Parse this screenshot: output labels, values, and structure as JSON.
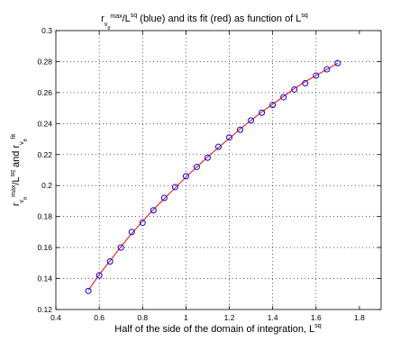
{
  "chart_data": {
    "type": "scatter",
    "title_parts": {
      "r": "r",
      "v": "v",
      "theta": "θ",
      "max": "max",
      "slash": "/L",
      "sq": "sq",
      "rest": " (blue) and its fit (red) as function of L"
    },
    "xlabel_parts": {
      "main": "Half of the side of the domain of integration, L",
      "sq": "sq"
    },
    "ylabel_parts": {
      "r": "r",
      "v": "v",
      "theta": "θ",
      "max": "max",
      "mid": "/L",
      "sq": "sq",
      "and": " and r",
      "fit": "fit"
    },
    "xlim": [
      0.4,
      1.9
    ],
    "ylim": [
      0.12,
      0.3
    ],
    "xticks": [
      0.4,
      0.6,
      0.8,
      1,
      1.2,
      1.4,
      1.6,
      1.8
    ],
    "yticks": [
      0.12,
      0.14,
      0.16,
      0.18,
      0.2,
      0.22,
      0.24,
      0.26,
      0.28,
      0.3
    ],
    "grid": true,
    "series": [
      {
        "style": "markers",
        "color": "#0000ff",
        "x": [
          0.55,
          0.6,
          0.65,
          0.7,
          0.75,
          0.8,
          0.85,
          0.9,
          0.95,
          1.0,
          1.05,
          1.1,
          1.15,
          1.2,
          1.25,
          1.3,
          1.35,
          1.4,
          1.45,
          1.5,
          1.55,
          1.6,
          1.65,
          1.7
        ],
        "y": [
          0.132,
          0.142,
          0.151,
          0.16,
          0.17,
          0.176,
          0.184,
          0.192,
          0.199,
          0.206,
          0.212,
          0.218,
          0.225,
          0.231,
          0.236,
          0.242,
          0.247,
          0.252,
          0.257,
          0.262,
          0.266,
          0.271,
          0.275,
          0.279
        ]
      },
      {
        "style": "line",
        "color": "#ff0000",
        "x": [
          0.55,
          0.6,
          0.65,
          0.7,
          0.75,
          0.8,
          0.85,
          0.9,
          0.95,
          1.0,
          1.05,
          1.1,
          1.15,
          1.2,
          1.25,
          1.3,
          1.35,
          1.4,
          1.45,
          1.5,
          1.55,
          1.6,
          1.65,
          1.7
        ],
        "y": [
          0.1325,
          0.1425,
          0.1515,
          0.1605,
          0.169,
          0.177,
          0.1845,
          0.1915,
          0.1985,
          0.2055,
          0.212,
          0.2185,
          0.2245,
          0.2305,
          0.2365,
          0.242,
          0.2475,
          0.2525,
          0.2575,
          0.2625,
          0.267,
          0.271,
          0.275,
          0.279
        ]
      }
    ]
  }
}
